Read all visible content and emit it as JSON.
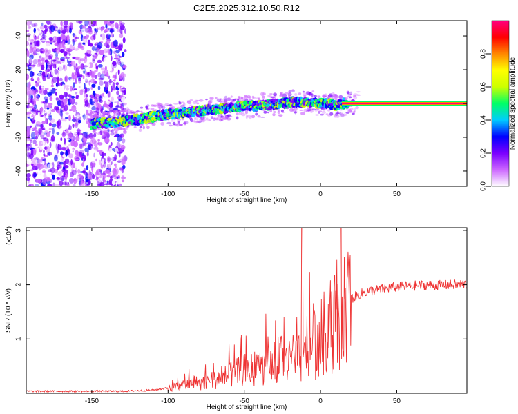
{
  "figure": {
    "title": "C2E5.2025.312.10.50.R12"
  },
  "chart_data": [
    {
      "type": "heatmap",
      "xlabel": "Height of straight line (km)",
      "ylabel": "Frequency (Hz)",
      "xlim": [
        -193,
        96
      ],
      "ylim": [
        -49,
        49
      ],
      "xticks": [
        -150,
        -100,
        -50,
        0,
        50
      ],
      "yticks": [
        -40,
        -20,
        0,
        20,
        40
      ],
      "colorbar": {
        "label": "Normalized spectral amplitude",
        "range": [
          0,
          1
        ],
        "ticks": [
          "0.0",
          "0.2",
          "0.4",
          "0.6",
          "0.8"
        ],
        "ticks_values": [
          0.0,
          0.2,
          0.4,
          0.6,
          0.8
        ],
        "colors": [
          "#ffffff",
          "#cc66ff",
          "#7a00ff",
          "#0000ff",
          "#00ccff",
          "#00ff66",
          "#ccff00",
          "#ffff00",
          "#ff8800",
          "#ff0000",
          "#ff0080"
        ]
      },
      "ridge": {
        "x": [
          -148,
          -140,
          -132,
          -125,
          -115,
          -105,
          -95,
          -85,
          -75,
          -65,
          -55,
          -45,
          -35,
          -25,
          -18,
          -10,
          -5,
          0,
          5,
          10,
          15,
          25,
          40,
          60,
          80,
          96
        ],
        "freq": [
          -12,
          -11.5,
          -10.5,
          -10,
          -8.5,
          -7,
          -6,
          -5,
          -4,
          -3,
          -2,
          -1.5,
          -1,
          0,
          1,
          0.5,
          0.5,
          0,
          0,
          -1,
          0,
          0,
          0,
          0,
          0,
          0
        ]
      }
    },
    {
      "type": "line",
      "xlabel": "Height of straight line (km)",
      "ylabel": "SNR (10 * v/v)",
      "y_multiplier": "(x10",
      "y_multiplier_exp": "4",
      "xlim": [
        -193,
        96
      ],
      "ylim": [
        0,
        3.05
      ],
      "xticks": [
        -150,
        -100,
        -50,
        0,
        50
      ],
      "yticks": [
        1,
        2,
        3
      ],
      "color": "#ee3333",
      "envelope": {
        "x": [
          -193,
          -130,
          -110,
          -100,
          -90,
          -80,
          -70,
          -60,
          -50,
          -40,
          -30,
          -25,
          -20,
          -15,
          -12,
          -10,
          -5,
          0,
          5,
          10,
          15,
          20,
          25,
          30,
          40,
          50,
          60,
          70,
          80,
          96
        ],
        "y": [
          0.04,
          0.04,
          0.06,
          0.1,
          0.15,
          0.2,
          0.28,
          0.35,
          0.45,
          0.52,
          0.55,
          0.6,
          0.62,
          0.65,
          0.7,
          0.8,
          0.92,
          1.08,
          1.28,
          1.5,
          1.65,
          1.75,
          1.82,
          1.88,
          1.93,
          1.97,
          1.99,
          2.0,
          2.0,
          2.02
        ]
      },
      "spike": {
        "x": -12,
        "y": 3.05
      }
    }
  ]
}
